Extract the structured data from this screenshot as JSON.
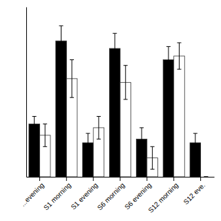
{
  "chart_data": {
    "type": "bar",
    "categories": [
      "...evening",
      "S1 morning",
      "S1 evening",
      "S6 morning",
      "S6 evening",
      "S12 morning",
      "S12 eve."
    ],
    "series": [
      {
        "color": "#000000",
        "values": [
          0.28,
          0.72,
          0.18,
          0.68,
          0.2,
          0.62,
          0.18
        ],
        "errors": [
          0.04,
          0.08,
          0.05,
          0.08,
          0.06,
          0.07,
          0.05
        ]
      },
      {
        "color": "#ffffff",
        "values": [
          0.22,
          0.52,
          0.26,
          0.5,
          0.1,
          0.64,
          0.0
        ],
        "errors": [
          0.06,
          0.1,
          0.06,
          0.09,
          0.06,
          0.07,
          0.0
        ]
      }
    ],
    "ylim": [
      0,
      0.9
    ],
    "tick_labels": "x"
  }
}
